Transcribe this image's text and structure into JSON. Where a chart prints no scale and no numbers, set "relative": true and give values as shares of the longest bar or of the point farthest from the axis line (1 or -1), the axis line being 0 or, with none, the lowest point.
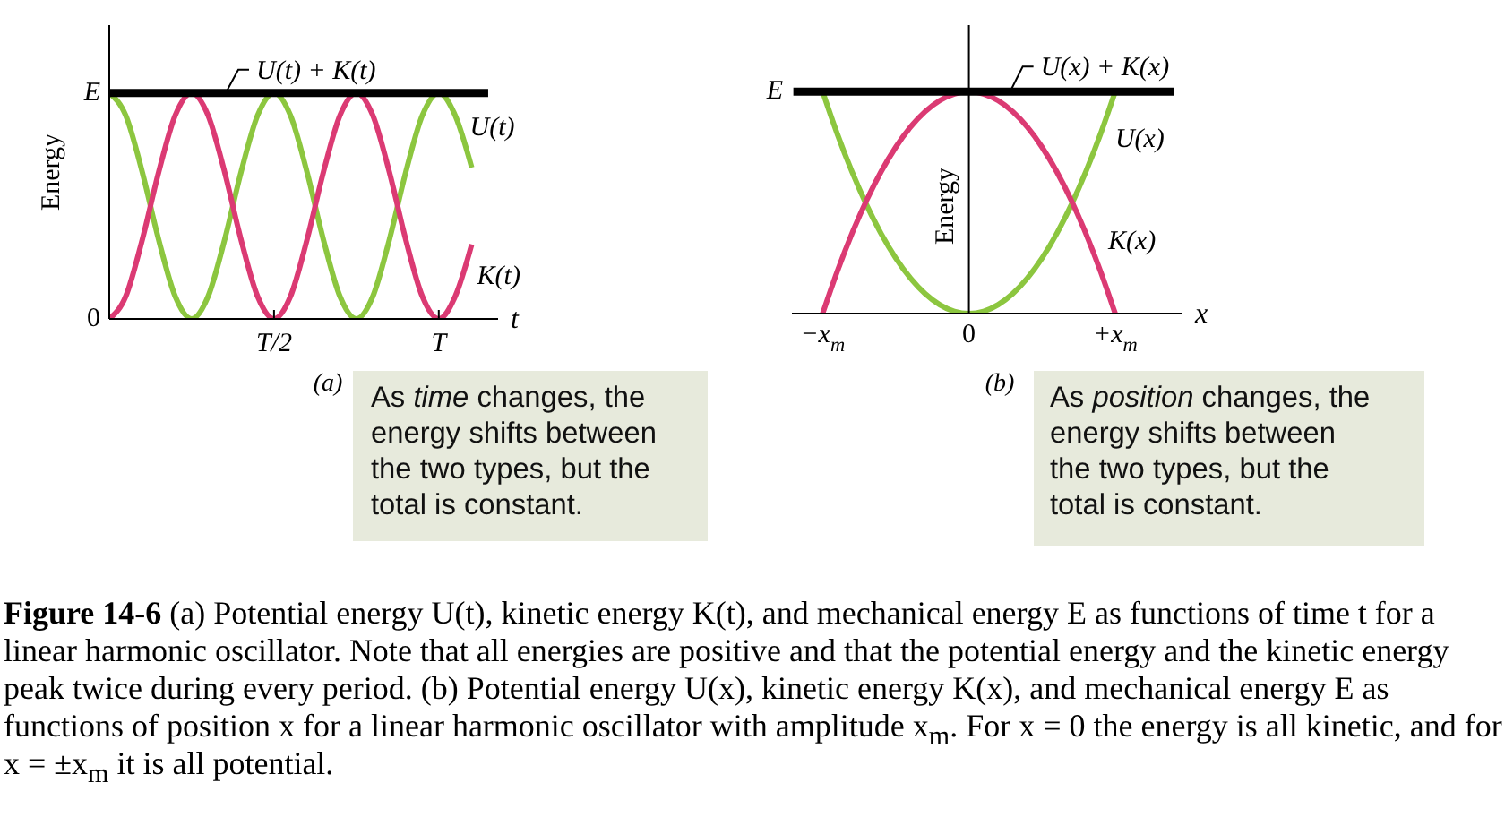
{
  "chart_data": [
    {
      "type": "line",
      "relative": true,
      "xlabel": "t",
      "ylabel": "Energy",
      "categories": [
        null,
        null,
        null,
        null,
        null,
        null,
        null,
        null,
        null,
        null,
        "T/2",
        null,
        null,
        null,
        null,
        null,
        null,
        null,
        null,
        null,
        "T",
        null,
        null,
        null
      ],
      "series": [
        {
          "name": "U(t)",
          "color": "#8cc63f",
          "values": [
            1,
            0.9,
            0.65,
            0.35,
            0.1,
            0,
            0.1,
            0.35,
            0.65,
            0.9,
            1,
            0.9,
            0.65,
            0.35,
            0.1,
            0,
            0.1,
            0.35,
            0.65,
            0.9,
            1,
            0.9,
            0.67,
            null
          ]
        },
        {
          "name": "K(t)",
          "color": "#db3a73",
          "values": [
            0,
            0.1,
            0.35,
            0.65,
            0.9,
            1,
            0.9,
            0.65,
            0.35,
            0.1,
            0,
            0.1,
            0.35,
            0.65,
            0.9,
            1,
            0.9,
            0.65,
            0.35,
            0.1,
            0,
            0.1,
            0.33,
            null
          ]
        },
        {
          "name": "U(t) + K(t)",
          "color": "#000000",
          "values": [
            1,
            1,
            1,
            1,
            1,
            1,
            1,
            1,
            1,
            1,
            1,
            1,
            1,
            1,
            1,
            1,
            1,
            1,
            1,
            1,
            1,
            1,
            1,
            1
          ]
        }
      ],
      "annotations": [
        "E",
        "0",
        "(a)",
        "As time changes, the energy shifts between the two types, but the total is constant.",
        "Figure 14-6 (a) Potential energy U(t), kinetic energy K(t), and mechanical energy E as functions of time t for a linear harmonic oscillator. Note that all energies are positive and that the potential energy and the kinetic energy peak twice during every period. (b) Potential energy U(x), kinetic energy K(x), and mechanical energy E as functions of position x for a linear harmonic oscillator with amplitude x$_{m}$. For x = 0 the energy is all kinetic, and for x = ±x$_{m}$ it is all potential."
      ]
    },
    {
      "type": "line",
      "relative": true,
      "xlabel": "x",
      "ylabel": "Energy",
      "categories": [
        null,
        null,
        "−x$_{m}$",
        null,
        null,
        null,
        null,
        null,
        null,
        null,
        null,
        null,
        "0",
        null,
        null,
        null,
        null,
        null,
        null,
        null,
        null,
        null,
        "+x$_{m}$",
        null,
        null,
        null,
        null
      ],
      "series": [
        {
          "name": "U(x)",
          "color": "#8cc63f",
          "values": [
            null,
            null,
            1,
            0.81,
            0.64,
            0.49,
            0.36,
            0.25,
            0.16,
            0.09,
            0.04,
            0.01,
            0,
            0.01,
            0.04,
            0.09,
            0.16,
            0.25,
            0.36,
            0.49,
            0.64,
            0.81,
            1,
            null,
            null,
            null,
            null
          ]
        },
        {
          "name": "K(x)",
          "color": "#db3a73",
          "values": [
            null,
            null,
            0,
            0.19,
            0.36,
            0.51,
            0.64,
            0.75,
            0.84,
            0.91,
            0.96,
            0.99,
            1,
            0.99,
            0.96,
            0.91,
            0.84,
            0.75,
            0.64,
            0.51,
            0.36,
            0.19,
            0,
            null,
            null,
            null,
            null
          ]
        },
        {
          "name": "U(x) + K(x)",
          "color": "#000000",
          "values": [
            1,
            1,
            1,
            1,
            1,
            1,
            1,
            1,
            1,
            1,
            1,
            1,
            1,
            1,
            1,
            1,
            1,
            1,
            1,
            1,
            1,
            1,
            1,
            1,
            1,
            1,
            1
          ]
        }
      ],
      "annotations": [
        "E",
        "(b)",
        "As position changes, the energy shifts between the two types, but the total is constant."
      ]
    }
  ]
}
